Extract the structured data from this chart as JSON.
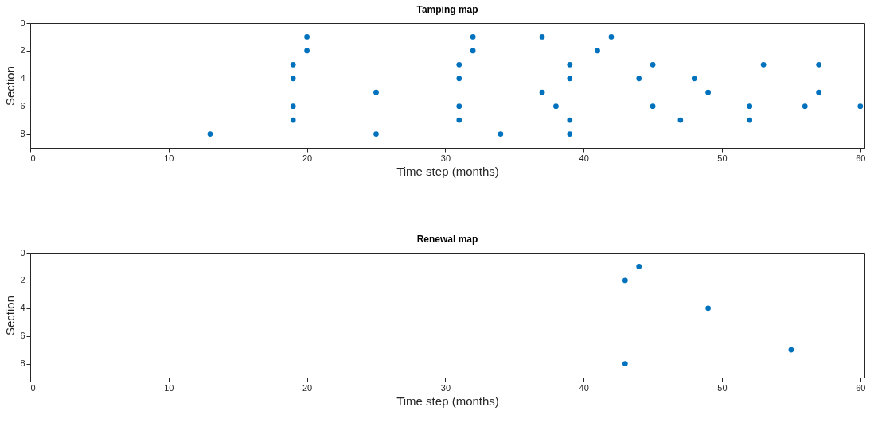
{
  "chart_data": [
    {
      "type": "scatter",
      "title": "Tamping map",
      "xlabel": "Time step (months)",
      "ylabel": "Section",
      "xlim": [
        0,
        60.3
      ],
      "xticks": [
        0,
        10,
        20,
        30,
        40,
        50,
        60
      ],
      "ylim": [
        9,
        0
      ],
      "yticks": [
        0,
        2,
        4,
        6,
        8
      ],
      "grid": false,
      "marker": "circle",
      "series": [
        {
          "color": "#0072bd",
          "x": [
            13,
            19,
            19,
            19,
            19,
            20,
            20,
            25,
            25,
            31,
            31,
            31,
            31,
            32,
            32,
            34,
            37,
            37,
            38,
            39,
            39,
            39,
            39,
            41,
            42,
            44,
            45,
            45,
            47,
            48,
            49,
            52,
            52,
            53,
            56,
            57,
            57,
            60
          ],
          "values": [
            8,
            3,
            4,
            6,
            7,
            1,
            2,
            5,
            8,
            3,
            4,
            6,
            7,
            1,
            2,
            8,
            1,
            5,
            6,
            3,
            4,
            7,
            8,
            2,
            1,
            4,
            3,
            6,
            7,
            4,
            5,
            6,
            7,
            3,
            6,
            3,
            5,
            6
          ]
        }
      ]
    },
    {
      "type": "scatter",
      "title": "Renewal map",
      "xlabel": "Time step (months)",
      "ylabel": "Section",
      "xlim": [
        0,
        60.3
      ],
      "xticks": [
        0,
        10,
        20,
        30,
        40,
        50,
        60
      ],
      "ylim": [
        9,
        0
      ],
      "yticks": [
        0,
        2,
        4,
        6,
        8
      ],
      "grid": false,
      "marker": "circle",
      "series": [
        {
          "color": "#0072bd",
          "x": [
            43,
            43,
            44,
            49,
            55
          ],
          "values": [
            2,
            8,
            1,
            4,
            7
          ]
        }
      ]
    }
  ]
}
